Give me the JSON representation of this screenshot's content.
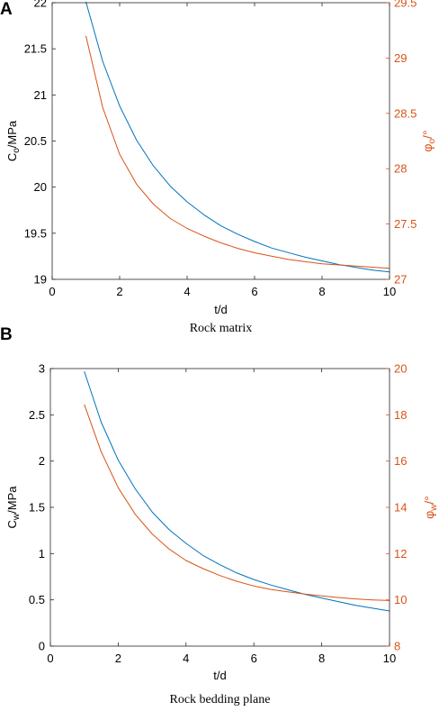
{
  "chart_data": [
    {
      "panel": "A",
      "type": "line",
      "caption": "Rock matrix",
      "xlabel": "t/d",
      "ylabel": {
        "base": "C",
        "sub": "o",
        "rest": "/MPa"
      },
      "y2label": {
        "base": "φ",
        "sub": "o",
        "rest": "/°"
      },
      "xlim": [
        0,
        10
      ],
      "xticks": [
        "0",
        "2",
        "4",
        "6",
        "8",
        "10"
      ],
      "ylim": [
        19,
        22
      ],
      "yticks": [
        "19",
        "19.5",
        "20",
        "20.5",
        "21",
        "21.5",
        "22"
      ],
      "y2lim": [
        27,
        29.5
      ],
      "y2ticks": [
        "27",
        "27.5",
        "28",
        "28.5",
        "29",
        "29.5"
      ],
      "grid": false,
      "colors": {
        "left": "#0072bd",
        "right": "#d95319"
      },
      "series": [
        {
          "axis": "left",
          "color": "#0072bd",
          "x": [
            1.0,
            1.5,
            2.0,
            2.5,
            3.0,
            3.5,
            4.0,
            4.5,
            5.0,
            5.5,
            6.0,
            6.5,
            7.0,
            7.5,
            8.0,
            8.5,
            9.0,
            9.5,
            10.0
          ],
          "y": [
            22.01,
            21.36,
            20.88,
            20.51,
            20.23,
            20.01,
            19.84,
            19.7,
            19.58,
            19.49,
            19.41,
            19.34,
            19.29,
            19.24,
            19.2,
            19.16,
            19.13,
            19.1,
            19.08
          ]
        },
        {
          "axis": "right",
          "color": "#d95319",
          "x": [
            1.0,
            1.5,
            2.0,
            2.5,
            3.0,
            3.5,
            4.0,
            4.5,
            5.0,
            5.5,
            6.0,
            6.5,
            7.0,
            7.5,
            8.0,
            8.5,
            9.0,
            9.5,
            10.0
          ],
          "y": [
            29.2,
            28.55,
            28.13,
            27.86,
            27.68,
            27.55,
            27.46,
            27.39,
            27.33,
            27.28,
            27.24,
            27.21,
            27.18,
            27.16,
            27.14,
            27.13,
            27.12,
            27.11,
            27.1
          ]
        }
      ]
    },
    {
      "panel": "B",
      "type": "line",
      "caption": "Rock bedding plane",
      "xlabel": "t/d",
      "ylabel": {
        "base": "C",
        "sub": "w",
        "rest": "/MPa"
      },
      "y2label": {
        "base": "φ",
        "sub": "w",
        "rest": "/°"
      },
      "xlim": [
        0,
        10
      ],
      "xticks": [
        "0",
        "2",
        "4",
        "6",
        "8",
        "10"
      ],
      "ylim": [
        0,
        3
      ],
      "yticks": [
        "0",
        "0.5",
        "1",
        "1.5",
        "2",
        "2.5",
        "3"
      ],
      "y2lim": [
        8,
        20
      ],
      "y2ticks": [
        "8",
        "10",
        "12",
        "14",
        "16",
        "18",
        "20"
      ],
      "grid": false,
      "colors": {
        "left": "#0072bd",
        "right": "#d95319"
      },
      "series": [
        {
          "axis": "left",
          "color": "#0072bd",
          "x": [
            1.0,
            1.5,
            2.0,
            2.5,
            3.0,
            3.5,
            4.0,
            4.5,
            5.0,
            5.5,
            6.0,
            6.5,
            7.0,
            7.5,
            8.0,
            8.5,
            9.0,
            9.5,
            10.0
          ],
          "y": [
            2.97,
            2.42,
            2.01,
            1.7,
            1.45,
            1.26,
            1.11,
            0.98,
            0.88,
            0.79,
            0.72,
            0.66,
            0.61,
            0.56,
            0.52,
            0.48,
            0.44,
            0.41,
            0.38
          ]
        },
        {
          "axis": "right",
          "color": "#d95319",
          "x": [
            1.0,
            1.5,
            2.0,
            2.5,
            3.0,
            3.5,
            4.0,
            4.5,
            5.0,
            5.5,
            6.0,
            6.5,
            7.0,
            7.5,
            8.0,
            8.5,
            9.0,
            9.5,
            10.0
          ],
          "y": [
            18.45,
            16.4,
            14.85,
            13.7,
            12.85,
            12.2,
            11.7,
            11.35,
            11.05,
            10.8,
            10.6,
            10.45,
            10.35,
            10.25,
            10.17,
            10.1,
            10.04,
            10.0,
            9.97
          ]
        }
      ]
    }
  ]
}
